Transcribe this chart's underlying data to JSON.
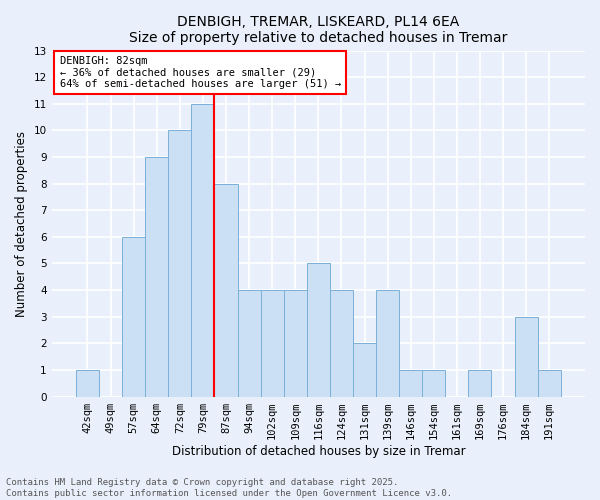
{
  "title_line1": "DENBIGH, TREMAR, LISKEARD, PL14 6EA",
  "title_line2": "Size of property relative to detached houses in Tremar",
  "xlabel": "Distribution of detached houses by size in Tremar",
  "ylabel": "Number of detached properties",
  "categories": [
    "42sqm",
    "49sqm",
    "57sqm",
    "64sqm",
    "72sqm",
    "79sqm",
    "87sqm",
    "94sqm",
    "102sqm",
    "109sqm",
    "116sqm",
    "124sqm",
    "131sqm",
    "139sqm",
    "146sqm",
    "154sqm",
    "161sqm",
    "169sqm",
    "176sqm",
    "184sqm",
    "191sqm"
  ],
  "values": [
    1,
    0,
    6,
    9,
    10,
    11,
    8,
    4,
    4,
    4,
    5,
    4,
    2,
    4,
    1,
    1,
    0,
    1,
    0,
    3,
    1
  ],
  "bar_color": "#cce0f5",
  "bar_edge_color": "#7ab0d8",
  "ref_line_x": 5.5,
  "ref_line_color": "red",
  "ylim": [
    0,
    13
  ],
  "yticks": [
    0,
    1,
    2,
    3,
    4,
    5,
    6,
    7,
    8,
    9,
    10,
    11,
    12,
    13
  ],
  "annotation_box_text": "DENBIGH: 82sqm\n← 36% of detached houses are smaller (29)\n64% of semi-detached houses are larger (51) →",
  "annotation_box_color": "white",
  "annotation_box_edge_color": "red",
  "footer_line1": "Contains HM Land Registry data © Crown copyright and database right 2025.",
  "footer_line2": "Contains public sector information licensed under the Open Government Licence v3.0.",
  "background_color": "#eaf0fb",
  "grid_color": "white",
  "title_fontsize": 10,
  "axis_label_fontsize": 8.5,
  "tick_fontsize": 7.5,
  "annotation_fontsize": 7.5,
  "footer_fontsize": 6.5
}
